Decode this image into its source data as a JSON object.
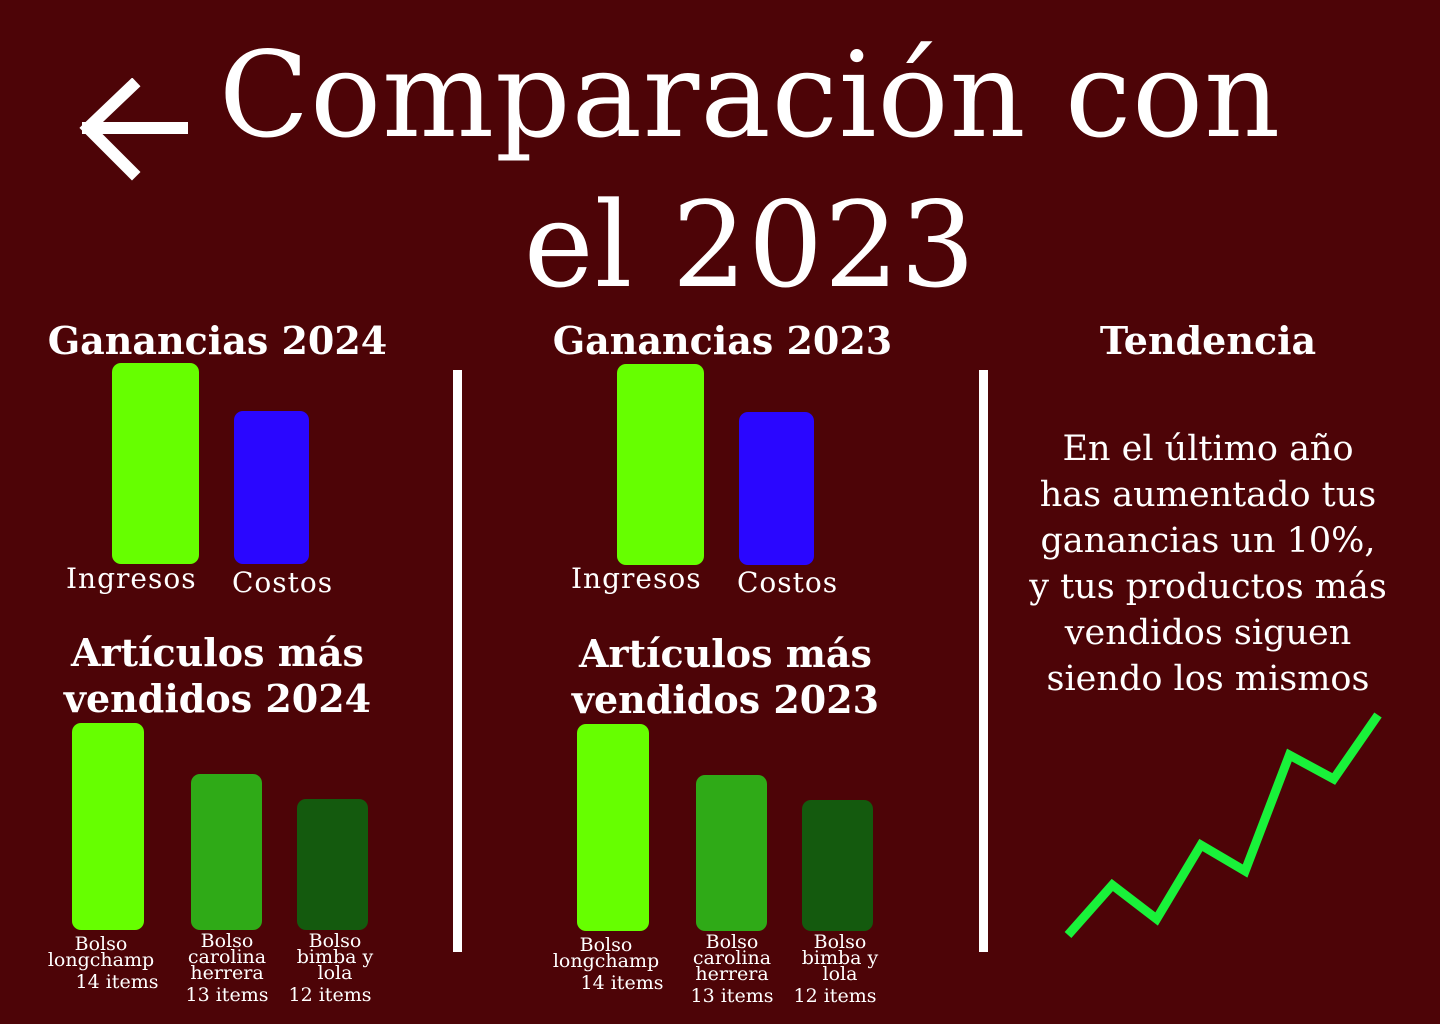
{
  "header": {
    "back_icon": "arrow-left-icon",
    "title_line1": "Comparación con",
    "title_line2": "el 2023"
  },
  "colors": {
    "background": "#4d0407",
    "ingresos": "#66ff00",
    "costos": "#2a06ff",
    "item1": "#66ff00",
    "item2": "#2faa17",
    "item3": "#145a0e",
    "trend": "#19f23a"
  },
  "chart_data": [
    {
      "type": "bar",
      "title": "Ganancias 2024",
      "categories": [
        "Ingresos",
        "Costos"
      ],
      "values": [
        100,
        76
      ]
    },
    {
      "type": "bar",
      "title": "Ganancias 2023",
      "categories": [
        "Ingresos",
        "Costos"
      ],
      "values": [
        100,
        76
      ]
    },
    {
      "type": "bar",
      "title": "Artículos más vendidos 2024",
      "categories": [
        "Bolso longchamp",
        "Bolso carolina herrera",
        "Bolso bimba y lola"
      ],
      "values": [
        14,
        13,
        12
      ],
      "data_labels": [
        "14 items",
        "13 items",
        "12 items"
      ]
    },
    {
      "type": "bar",
      "title": "Artículos más vendidos 2023",
      "categories": [
        "Bolso longchamp",
        "Bolso carolina herrera",
        "Bolso bimba y lola"
      ],
      "values": [
        14,
        13,
        12
      ],
      "data_labels": [
        "14 items",
        "13 items",
        "12 items"
      ]
    },
    {
      "type": "line",
      "title": "Tendencia",
      "values": [
        0,
        25,
        8,
        45,
        32,
        90,
        78,
        110
      ]
    }
  ],
  "labels": {
    "g24_title": "Ganancias 2024",
    "g23_title": "Ganancias 2023",
    "a24_title_l1": "Artículos más",
    "a24_title_l2": "vendidos 2024",
    "a23_title_l1": "Artículos más",
    "a23_title_l2": "vendidos 2023",
    "ingresos": "Ingresos",
    "costos": "Costos",
    "item1_l1": "Bolso",
    "item1_l2": "longchamp",
    "item2_l1": "Bolso",
    "item2_l2": "carolina",
    "item2_l3": "herrera",
    "item3_l1": "Bolso",
    "item3_l2": "bimba y",
    "item3_l3": "lola",
    "count1": "14 items",
    "count2": "13 items",
    "count3": "12 items"
  },
  "trend": {
    "title": "Tendencia",
    "text": "En el último año has aumentado tus ganancias un 10%, y tus productos más vendidos siguen siendo los mismos"
  }
}
